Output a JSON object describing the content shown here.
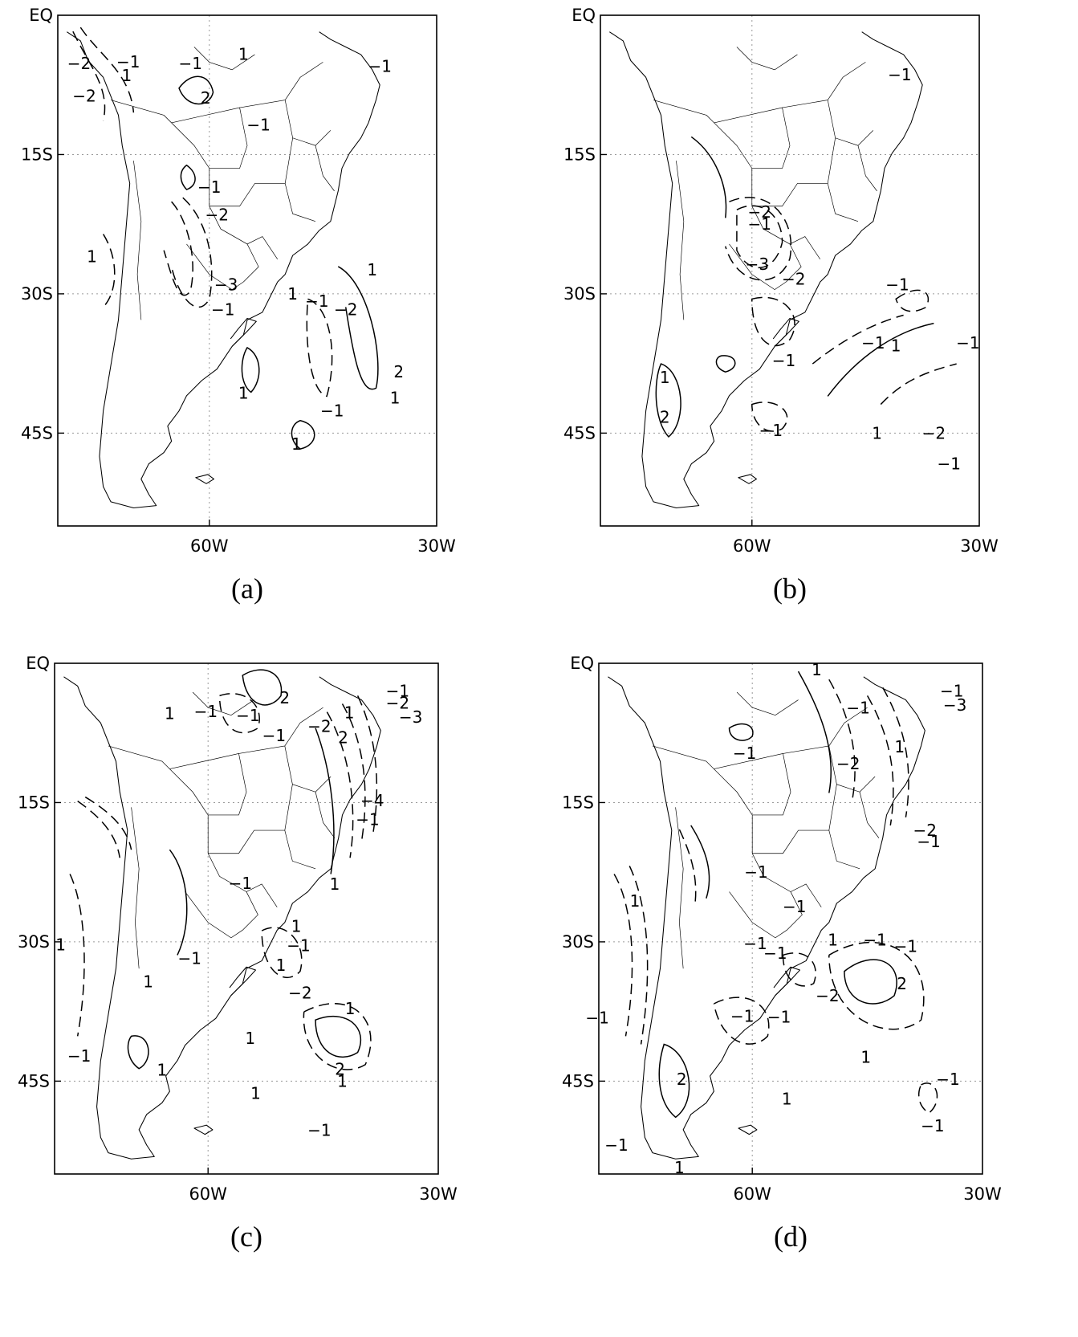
{
  "panels": [
    {
      "caption": "(a)",
      "lat_labels": [
        "EQ",
        "15S",
        "30S",
        "45S"
      ],
      "lon_labels": [
        "60W",
        "30W"
      ],
      "contour_labels": [
        {
          "text": "-2",
          "lon": -77.2,
          "lat": -5.2
        },
        {
          "text": "-1",
          "lon": -70.7,
          "lat": -5.0
        },
        {
          "text": "1",
          "lon": -70.9,
          "lat": -6.5
        },
        {
          "text": "-1",
          "lon": -62.5,
          "lat": -5.2
        },
        {
          "text": "1",
          "lon": -55.5,
          "lat": -4.2
        },
        {
          "text": "-2",
          "lon": -76.5,
          "lat": -8.7
        },
        {
          "text": "2",
          "lon": -60.5,
          "lat": -8.9
        },
        {
          "text": "-1",
          "lon": -53.5,
          "lat": -11.8
        },
        {
          "text": "-1",
          "lon": -37.5,
          "lat": -5.5
        },
        {
          "text": "-1",
          "lon": -60.0,
          "lat": -18.5
        },
        {
          "text": "-2",
          "lon": -59.0,
          "lat": -21.5
        },
        {
          "text": "1",
          "lon": -75.5,
          "lat": -26.0
        },
        {
          "text": "-3",
          "lon": -57.8,
          "lat": -29.0
        },
        {
          "text": "-1",
          "lon": -58.2,
          "lat": -31.7
        },
        {
          "text": "1",
          "lon": -49.0,
          "lat": -30.0
        },
        {
          "text": "-1",
          "lon": -45.8,
          "lat": -30.8
        },
        {
          "text": "-2",
          "lon": -42.0,
          "lat": -31.7
        },
        {
          "text": "1",
          "lon": -38.5,
          "lat": -27.4
        },
        {
          "text": "2",
          "lon": -35.0,
          "lat": -38.4
        },
        {
          "text": "1",
          "lon": -35.5,
          "lat": -41.2
        },
        {
          "text": "1",
          "lon": -55.5,
          "lat": -40.7
        },
        {
          "text": "-1",
          "lon": -43.8,
          "lat": -42.6
        },
        {
          "text": "1",
          "lon": -48.5,
          "lat": -46.2
        }
      ]
    },
    {
      "caption": "(b)",
      "lat_labels": [
        "EQ",
        "15S",
        "30S",
        "45S"
      ],
      "lon_labels": [
        "60W",
        "30W"
      ],
      "contour_labels": [
        {
          "text": "-1",
          "lon": -40.5,
          "lat": -6.4
        },
        {
          "text": "-2",
          "lon": -59.0,
          "lat": -21.2
        },
        {
          "text": "-1",
          "lon": -59.0,
          "lat": -22.5
        },
        {
          "text": "-3",
          "lon": -59.3,
          "lat": -26.8
        },
        {
          "text": "-2",
          "lon": -54.5,
          "lat": -28.4
        },
        {
          "text": "-1",
          "lon": -40.8,
          "lat": -29.0
        },
        {
          "text": "-1",
          "lon": -44.0,
          "lat": -35.3
        },
        {
          "text": "1",
          "lon": -41.0,
          "lat": -35.6
        },
        {
          "text": "-1",
          "lon": -31.5,
          "lat": -35.3
        },
        {
          "text": "-1",
          "lon": -55.8,
          "lat": -37.2
        },
        {
          "text": "1",
          "lon": -71.5,
          "lat": -39.0
        },
        {
          "text": "2",
          "lon": -71.5,
          "lat": -43.3
        },
        {
          "text": "-1",
          "lon": -57.5,
          "lat": -44.7
        },
        {
          "text": "1",
          "lon": -43.5,
          "lat": -45.0
        },
        {
          "text": "-2",
          "lon": -36.0,
          "lat": -45.0
        },
        {
          "text": "-1",
          "lon": -34.0,
          "lat": -48.3
        }
      ]
    },
    {
      "caption": "(c)",
      "lat_labels": [
        "EQ",
        "15S",
        "30S",
        "45S"
      ],
      "lon_labels": [
        "60W",
        "30W"
      ],
      "contour_labels": [
        {
          "text": "2",
          "lon": -50.0,
          "lat": -3.7
        },
        {
          "text": "1",
          "lon": -65.0,
          "lat": -5.4
        },
        {
          "text": "-1",
          "lon": -60.3,
          "lat": -5.2
        },
        {
          "text": "-1",
          "lon": -54.8,
          "lat": -5.6
        },
        {
          "text": "-1",
          "lon": -51.4,
          "lat": -7.8
        },
        {
          "text": "-2",
          "lon": -45.5,
          "lat": -6.8
        },
        {
          "text": "1",
          "lon": -41.6,
          "lat": -5.3
        },
        {
          "text": "2",
          "lon": -42.4,
          "lat": -8.0
        },
        {
          "text": "-1",
          "lon": -35.3,
          "lat": -3.0
        },
        {
          "text": "-2",
          "lon": -35.3,
          "lat": -4.3
        },
        {
          "text": "-3",
          "lon": -33.6,
          "lat": -5.8
        },
        {
          "text": "-4",
          "lon": -38.6,
          "lat": -14.8
        },
        {
          "text": "-1",
          "lon": -39.2,
          "lat": -16.8
        },
        {
          "text": "1",
          "lon": -43.5,
          "lat": -23.8
        },
        {
          "text": "-1",
          "lon": -55.8,
          "lat": -23.7
        },
        {
          "text": "1",
          "lon": -48.5,
          "lat": -28.3
        },
        {
          "text": "-1",
          "lon": -48.2,
          "lat": -30.4
        },
        {
          "text": "1",
          "lon": -50.5,
          "lat": -32.5
        },
        {
          "text": "1",
          "lon": -79.2,
          "lat": -30.3
        },
        {
          "text": "-1",
          "lon": -62.4,
          "lat": -31.8
        },
        {
          "text": "1",
          "lon": -67.8,
          "lat": -34.3
        },
        {
          "text": "-2",
          "lon": -48.0,
          "lat": -35.5
        },
        {
          "text": "1",
          "lon": -41.5,
          "lat": -37.2
        },
        {
          "text": "1",
          "lon": -54.5,
          "lat": -40.4
        },
        {
          "text": "-1",
          "lon": -76.8,
          "lat": -42.3
        },
        {
          "text": "1",
          "lon": -66.0,
          "lat": -43.8
        },
        {
          "text": "2",
          "lon": -42.8,
          "lat": -43.7
        },
        {
          "text": "1",
          "lon": -42.5,
          "lat": -45.0
        },
        {
          "text": "1",
          "lon": -53.8,
          "lat": -46.3
        },
        {
          "text": "-1",
          "lon": -45.5,
          "lat": -50.3
        }
      ]
    },
    {
      "caption": "(d)",
      "lat_labels": [
        "EQ",
        "15S",
        "30S",
        "45S"
      ],
      "lon_labels": [
        "60W",
        "30W"
      ],
      "contour_labels": [
        {
          "text": "1",
          "lon": -51.6,
          "lat": -0.7
        },
        {
          "text": "-1",
          "lon": -34.0,
          "lat": -3.0
        },
        {
          "text": "-1",
          "lon": -46.2,
          "lat": -4.8
        },
        {
          "text": "-3",
          "lon": -33.6,
          "lat": -4.5
        },
        {
          "text": "-1",
          "lon": -61.0,
          "lat": -9.7
        },
        {
          "text": "-2",
          "lon": -47.5,
          "lat": -10.8
        },
        {
          "text": "1",
          "lon": -40.8,
          "lat": -9.0
        },
        {
          "text": "-2",
          "lon": -37.5,
          "lat": -18.0
        },
        {
          "text": "-1",
          "lon": -37.0,
          "lat": -19.2
        },
        {
          "text": "-1",
          "lon": -59.5,
          "lat": -22.5
        },
        {
          "text": "1",
          "lon": -75.3,
          "lat": -25.6
        },
        {
          "text": "-1",
          "lon": -54.5,
          "lat": -26.2
        },
        {
          "text": "-1",
          "lon": -59.6,
          "lat": -30.2
        },
        {
          "text": "-1",
          "lon": -57.0,
          "lat": -31.2
        },
        {
          "text": "1",
          "lon": -49.5,
          "lat": -29.8
        },
        {
          "text": "-1",
          "lon": -44.0,
          "lat": -29.8
        },
        {
          "text": "-1",
          "lon": -40.0,
          "lat": -30.5
        },
        {
          "text": "2",
          "lon": -40.5,
          "lat": -34.5
        },
        {
          "text": "-2",
          "lon": -50.2,
          "lat": -35.8
        },
        {
          "text": "-1",
          "lon": -80.2,
          "lat": -38.2
        },
        {
          "text": "-1",
          "lon": -61.3,
          "lat": -38.0
        },
        {
          "text": "-1",
          "lon": -56.5,
          "lat": -38.1
        },
        {
          "text": "1",
          "lon": -45.2,
          "lat": -42.4
        },
        {
          "text": "-1",
          "lon": -34.5,
          "lat": -44.8
        },
        {
          "text": "2",
          "lon": -69.2,
          "lat": -44.8
        },
        {
          "text": "1",
          "lon": -55.5,
          "lat": -46.9
        },
        {
          "text": "-1",
          "lon": -36.5,
          "lat": -49.8
        },
        {
          "text": "-1",
          "lon": -77.7,
          "lat": -51.9
        },
        {
          "text": "1",
          "lon": -69.5,
          "lat": -54.3
        }
      ]
    }
  ]
}
